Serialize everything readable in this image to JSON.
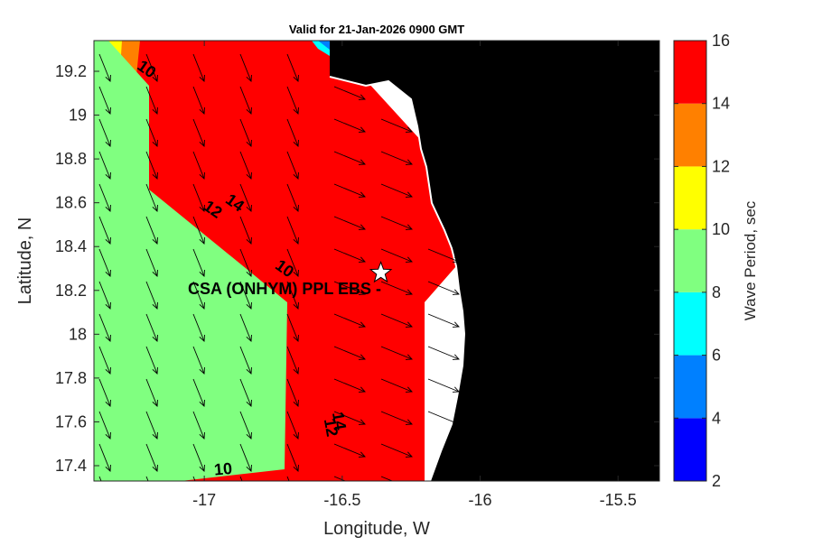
{
  "chart_data": {
    "type": "heatmap",
    "title": "Valid for 21-Jan-2026 0900 GMT",
    "xlabel": "Longitude, W",
    "ylabel": "Latitude, N",
    "xlim": [
      -17.4,
      -15.35
    ],
    "ylim": [
      17.33,
      19.34
    ],
    "xticks": [
      -17,
      -16.5,
      -16,
      -15.5
    ],
    "xtick_labels": [
      "-17",
      "-16.5",
      "-16",
      "-15.5"
    ],
    "yticks": [
      17.4,
      17.6,
      17.8,
      18,
      18.2,
      18.4,
      18.6,
      18.8,
      19,
      19.2
    ],
    "ytick_labels": [
      "17.4",
      "17.6",
      "17.8",
      "18",
      "18.2",
      "18.4",
      "18.6",
      "18.8",
      "19",
      "19.2"
    ],
    "colorbar": {
      "label": "Wave Period, sec",
      "ticks": [
        2,
        4,
        6,
        8,
        10,
        12,
        14,
        16
      ],
      "bands": [
        {
          "from": 2,
          "to": 4,
          "color": "#0000ff"
        },
        {
          "from": 4,
          "to": 6,
          "color": "#0080ff"
        },
        {
          "from": 6,
          "to": 8,
          "color": "#00ffff"
        },
        {
          "from": 8,
          "to": 10,
          "color": "#80ff80"
        },
        {
          "from": 10,
          "to": 12,
          "color": "#ffff00"
        },
        {
          "from": 12,
          "to": 14,
          "color": "#ff8000"
        },
        {
          "from": 14,
          "to": 16,
          "color": "#ff0000"
        }
      ]
    },
    "contour_labels": [
      {
        "text": "10",
        "lon": -17.22,
        "lat": 19.19
      },
      {
        "text": "12",
        "lon": -16.98,
        "lat": 18.55
      },
      {
        "text": "14",
        "lon": -16.9,
        "lat": 18.58
      },
      {
        "text": "10",
        "lon": -16.72,
        "lat": 18.28
      },
      {
        "text": "14",
        "lon": -16.53,
        "lat": 17.6
      },
      {
        "text": "12",
        "lon": -16.56,
        "lat": 17.57
      },
      {
        "text": "10",
        "lon": -16.93,
        "lat": 17.36
      }
    ],
    "station": {
      "label": "CSA (ONHYM) PPL EBS - ",
      "lon": -16.36,
      "lat": 18.28
    },
    "land_color": "#000000",
    "masked_color": "#ffffff"
  }
}
